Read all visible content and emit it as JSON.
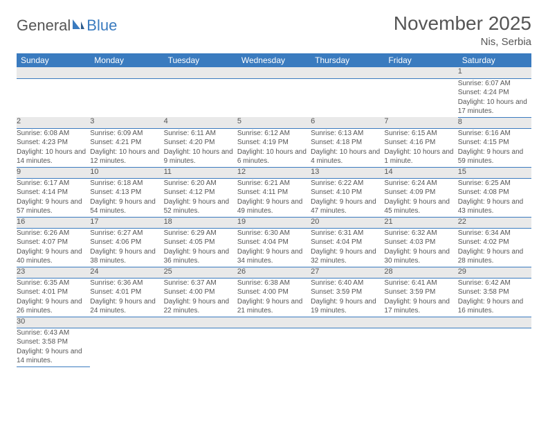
{
  "logo": {
    "text1": "General",
    "text2": "Blue"
  },
  "title": "November 2025",
  "location": "Nis, Serbia",
  "colors": {
    "header_bg": "#3a7bbf",
    "header_text": "#ffffff",
    "daynum_bg": "#e9e9e9",
    "body_text": "#555555",
    "rule": "#3a7bbf",
    "page_bg": "#ffffff"
  },
  "day_headers": [
    "Sunday",
    "Monday",
    "Tuesday",
    "Wednesday",
    "Thursday",
    "Friday",
    "Saturday"
  ],
  "weeks": [
    {
      "nums": [
        "",
        "",
        "",
        "",
        "",
        "",
        "1"
      ],
      "details": [
        "",
        "",
        "",
        "",
        "",
        "",
        "Sunrise: 6:07 AM\nSunset: 4:24 PM\nDaylight: 10 hours and 17 minutes."
      ]
    },
    {
      "nums": [
        "2",
        "3",
        "4",
        "5",
        "6",
        "7",
        "8"
      ],
      "details": [
        "Sunrise: 6:08 AM\nSunset: 4:23 PM\nDaylight: 10 hours and 14 minutes.",
        "Sunrise: 6:09 AM\nSunset: 4:21 PM\nDaylight: 10 hours and 12 minutes.",
        "Sunrise: 6:11 AM\nSunset: 4:20 PM\nDaylight: 10 hours and 9 minutes.",
        "Sunrise: 6:12 AM\nSunset: 4:19 PM\nDaylight: 10 hours and 6 minutes.",
        "Sunrise: 6:13 AM\nSunset: 4:18 PM\nDaylight: 10 hours and 4 minutes.",
        "Sunrise: 6:15 AM\nSunset: 4:16 PM\nDaylight: 10 hours and 1 minute.",
        "Sunrise: 6:16 AM\nSunset: 4:15 PM\nDaylight: 9 hours and 59 minutes."
      ]
    },
    {
      "nums": [
        "9",
        "10",
        "11",
        "12",
        "13",
        "14",
        "15"
      ],
      "details": [
        "Sunrise: 6:17 AM\nSunset: 4:14 PM\nDaylight: 9 hours and 57 minutes.",
        "Sunrise: 6:18 AM\nSunset: 4:13 PM\nDaylight: 9 hours and 54 minutes.",
        "Sunrise: 6:20 AM\nSunset: 4:12 PM\nDaylight: 9 hours and 52 minutes.",
        "Sunrise: 6:21 AM\nSunset: 4:11 PM\nDaylight: 9 hours and 49 minutes.",
        "Sunrise: 6:22 AM\nSunset: 4:10 PM\nDaylight: 9 hours and 47 minutes.",
        "Sunrise: 6:24 AM\nSunset: 4:09 PM\nDaylight: 9 hours and 45 minutes.",
        "Sunrise: 6:25 AM\nSunset: 4:08 PM\nDaylight: 9 hours and 43 minutes."
      ]
    },
    {
      "nums": [
        "16",
        "17",
        "18",
        "19",
        "20",
        "21",
        "22"
      ],
      "details": [
        "Sunrise: 6:26 AM\nSunset: 4:07 PM\nDaylight: 9 hours and 40 minutes.",
        "Sunrise: 6:27 AM\nSunset: 4:06 PM\nDaylight: 9 hours and 38 minutes.",
        "Sunrise: 6:29 AM\nSunset: 4:05 PM\nDaylight: 9 hours and 36 minutes.",
        "Sunrise: 6:30 AM\nSunset: 4:04 PM\nDaylight: 9 hours and 34 minutes.",
        "Sunrise: 6:31 AM\nSunset: 4:04 PM\nDaylight: 9 hours and 32 minutes.",
        "Sunrise: 6:32 AM\nSunset: 4:03 PM\nDaylight: 9 hours and 30 minutes.",
        "Sunrise: 6:34 AM\nSunset: 4:02 PM\nDaylight: 9 hours and 28 minutes."
      ]
    },
    {
      "nums": [
        "23",
        "24",
        "25",
        "26",
        "27",
        "28",
        "29"
      ],
      "details": [
        "Sunrise: 6:35 AM\nSunset: 4:01 PM\nDaylight: 9 hours and 26 minutes.",
        "Sunrise: 6:36 AM\nSunset: 4:01 PM\nDaylight: 9 hours and 24 minutes.",
        "Sunrise: 6:37 AM\nSunset: 4:00 PM\nDaylight: 9 hours and 22 minutes.",
        "Sunrise: 6:38 AM\nSunset: 4:00 PM\nDaylight: 9 hours and 21 minutes.",
        "Sunrise: 6:40 AM\nSunset: 3:59 PM\nDaylight: 9 hours and 19 minutes.",
        "Sunrise: 6:41 AM\nSunset: 3:59 PM\nDaylight: 9 hours and 17 minutes.",
        "Sunrise: 6:42 AM\nSunset: 3:58 PM\nDaylight: 9 hours and 16 minutes."
      ]
    },
    {
      "nums": [
        "30",
        "",
        "",
        "",
        "",
        "",
        ""
      ],
      "details": [
        "Sunrise: 6:43 AM\nSunset: 3:58 PM\nDaylight: 9 hours and 14 minutes.",
        "",
        "",
        "",
        "",
        "",
        ""
      ]
    }
  ]
}
